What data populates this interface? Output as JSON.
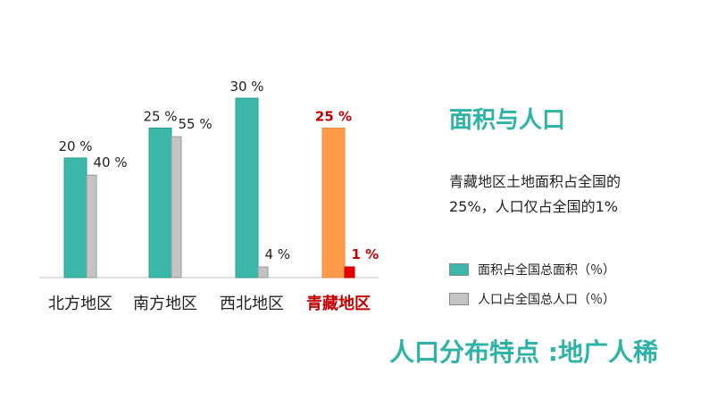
{
  "chart_data": {
    "type": "bar",
    "categories": [
      "北方地区",
      "南方地区",
      "西北地区",
      "青藏地区"
    ],
    "series": [
      {
        "name": "面积占全国总面积（％）",
        "values": [
          20,
          25,
          30,
          25
        ],
        "labels": [
          "20 %",
          "25 %",
          "30 %",
          "25 %"
        ]
      },
      {
        "name": "人口占全国总人口（％）",
        "values": [
          40,
          55,
          4,
          1
        ],
        "labels": [
          "40 %",
          "55 %",
          "4 %",
          "1 %"
        ]
      }
    ],
    "note": "面积 bars and 人口 bars use separate, unlabeled scales",
    "highlight": {
      "category": "青藏地区",
      "area_color": "#ff9a4a",
      "population_color": "#e60000",
      "label_color": "#c00000"
    },
    "colors": {
      "area": "#3cb6a8",
      "population": "#c4c4c4",
      "axis": "#bfbfbf",
      "text": "#222222"
    }
  },
  "panel": {
    "title": "面积与人口",
    "description_line1": "青藏地区土地面积占全国的",
    "description_line2": "25%，人口仅占全国的1%"
  },
  "legend": {
    "area_label": "面积占全国总面积（％）",
    "population_label": "人口占全国总人口（％）"
  },
  "feature_text": "人口分布特点 :地广人稀"
}
